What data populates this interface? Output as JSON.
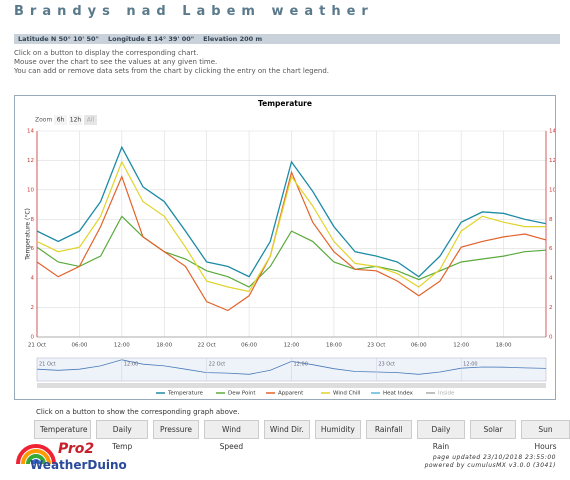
{
  "header": {
    "title": "Brandys nad Labem weather",
    "location": "Latitude N 50° 10' 50\"    Longitude E 14° 39' 00\"    Elevation 200 m"
  },
  "instructions": [
    "Click on a button to display the corresponding chart.",
    "Mouse over the chart to see the values at any given time.",
    "You can add or remove data sets from the chart by clicking the entry on the chart legend."
  ],
  "chart_data": {
    "type": "line",
    "title": "Temperature",
    "ylabel": "Temperature (°C)",
    "zoom": {
      "label": "Zoom",
      "buttons": [
        "6h",
        "12h",
        "All"
      ]
    },
    "x": [
      0,
      3,
      6,
      9,
      12,
      15,
      18,
      21,
      24,
      27,
      30,
      33,
      36,
      39,
      42,
      45,
      48,
      51,
      54,
      57,
      60,
      63,
      66,
      69,
      72
    ],
    "xlim": [
      0,
      72
    ],
    "xticks": [
      {
        "value": 0,
        "label": "21 Oct"
      },
      {
        "value": 6,
        "label": "06:00"
      },
      {
        "value": 12,
        "label": "12:00"
      },
      {
        "value": 18,
        "label": "18:00"
      },
      {
        "value": 24,
        "label": "22 Oct"
      },
      {
        "value": 30,
        "label": "06:00"
      },
      {
        "value": 36,
        "label": "12:00"
      },
      {
        "value": 42,
        "label": "18:00"
      },
      {
        "value": 48,
        "label": "23 Oct"
      },
      {
        "value": 54,
        "label": "06:00"
      },
      {
        "value": 60,
        "label": "12:00"
      },
      {
        "value": 66,
        "label": "18:00"
      }
    ],
    "ylim": [
      0,
      14
    ],
    "yticks": [
      0,
      2,
      4,
      6,
      8,
      10,
      12,
      14
    ],
    "grid": true,
    "series": [
      {
        "name": "Temperature",
        "color": "#1f8ba3",
        "values": [
          7.2,
          6.5,
          7.2,
          9.2,
          12.9,
          10.2,
          9.2,
          7.2,
          5.1,
          4.8,
          4.1,
          6.5,
          11.9,
          9.9,
          7.5,
          5.8,
          5.5,
          5.1,
          4.1,
          5.5,
          7.8,
          8.5,
          8.4,
          8.0,
          7.7
        ]
      },
      {
        "name": "Dew Point",
        "color": "#5aaa3c",
        "values": [
          6.1,
          5.1,
          4.8,
          5.5,
          8.2,
          6.8,
          5.8,
          5.3,
          4.5,
          4.1,
          3.4,
          4.8,
          7.2,
          6.5,
          5.1,
          4.6,
          4.8,
          4.5,
          3.9,
          4.5,
          5.1,
          5.3,
          5.5,
          5.8,
          5.9
        ]
      },
      {
        "name": "Apparent",
        "color": "#e2622a",
        "values": [
          5.1,
          4.1,
          4.8,
          7.5,
          10.9,
          6.8,
          5.8,
          4.8,
          2.4,
          1.8,
          2.8,
          5.5,
          11.2,
          7.8,
          5.8,
          4.6,
          4.5,
          3.8,
          2.8,
          3.8,
          6.1,
          6.5,
          6.8,
          7.0,
          6.6
        ]
      },
      {
        "name": "Wind Chill",
        "color": "#e0d42a",
        "values": [
          6.5,
          5.8,
          6.1,
          8.2,
          11.9,
          9.2,
          8.2,
          6.1,
          3.8,
          3.4,
          3.1,
          5.5,
          10.9,
          8.9,
          6.5,
          5.0,
          4.8,
          4.3,
          3.4,
          4.6,
          7.2,
          8.2,
          7.8,
          7.5,
          7.5
        ]
      },
      {
        "name": "Heat Index",
        "color": "#5bb8d8",
        "values": [
          7.2,
          6.5,
          7.2,
          9.2,
          12.9,
          10.2,
          9.2,
          7.2,
          5.1,
          4.8,
          4.1,
          6.5,
          11.9,
          9.9,
          7.5,
          5.8,
          5.5,
          5.1,
          4.1,
          5.5,
          7.8,
          8.5,
          8.4,
          8.0,
          7.7
        ]
      },
      {
        "name": "Inside",
        "color": "#aaaaaa",
        "visible": false,
        "values": [
          null,
          null,
          null,
          null,
          null,
          null,
          null,
          null,
          null,
          null,
          null,
          null,
          null,
          null,
          null,
          null,
          null,
          null,
          null,
          null,
          null,
          null,
          null,
          null,
          null
        ]
      }
    ]
  },
  "navigator": {
    "xticks": [
      {
        "value": 0,
        "label": "21 Oct"
      },
      {
        "value": 12,
        "label": "12:00"
      },
      {
        "value": 24,
        "label": "22 Oct"
      },
      {
        "value": 36,
        "label": "12:00"
      },
      {
        "value": 48,
        "label": "23 Oct"
      },
      {
        "value": 60,
        "label": "12:00"
      }
    ]
  },
  "button_prompt": "Click on a button to show the corresponding graph above.",
  "buttons": [
    "Temperature",
    "Daily Temp",
    "Pressure",
    "Wind Speed",
    "Wind Dir.",
    "Humidity",
    "Rainfall",
    "Daily Rain",
    "Solar",
    "Sun Hours"
  ],
  "logo": {
    "brand": "Pro2",
    "name": "WeatherDuino"
  },
  "footer": [
    "page updated 23/10/2018 23:55:00",
    "powered by cumulusMX v3.0.0 (3041)"
  ]
}
